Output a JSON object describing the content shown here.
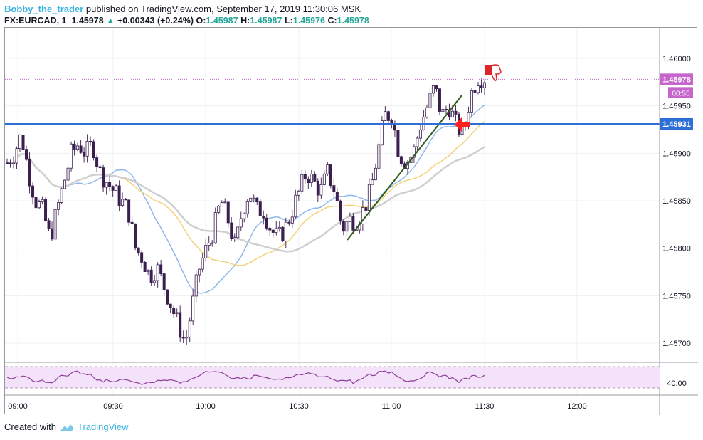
{
  "header": {
    "author": "Bobby_the_trader",
    "published": "published on TradingView.com, September 17, 2019 11:30:06 MSK",
    "symbol": "FX:EURCAD, 1",
    "last": "1.45978",
    "change_arrow": "▲",
    "change": "+0.00343 (+0.24%)",
    "o_label": "O:",
    "o": "1.45987",
    "h_label": "H:",
    "h": "1.45987",
    "l_label": "L:",
    "l": "1.45976",
    "c_label": "C:",
    "c": "1.45978"
  },
  "price_axis": {
    "ticks": [
      "1.46000",
      "1.45950",
      "1.45900",
      "1.45850",
      "1.45800",
      "1.45750",
      "1.45700"
    ],
    "tick_values": [
      1.46,
      1.4595,
      1.459,
      1.4585,
      1.458,
      1.4575,
      1.457
    ],
    "current_price_label": "1.45978",
    "current_price": 1.45978,
    "countdown": "00:55",
    "level_label": "1.45931",
    "level": 1.45931,
    "current_color": "#c666cc",
    "level_color": "#2d6fd6"
  },
  "rsi": {
    "level_label": "40.00"
  },
  "time_axis": {
    "ticks": [
      "09:00",
      "09:30",
      "10:00",
      "10:30",
      "11:00",
      "11:30",
      "12:00"
    ]
  },
  "footer": {
    "created_with": "Created with",
    "brand": "TradingView",
    "logo_icon": "tradingview-cloud-icon"
  },
  "annotations": {
    "arrow_icon": "red-left-arrow-icon",
    "thumb_icon": "thumbs-down-icon",
    "trendline_color": "#2e5a1c"
  },
  "chart_data": {
    "type": "candlestick",
    "interval": "1",
    "x_range": [
      "08:58",
      "12:28"
    ],
    "y_range": [
      1.45685,
      1.46032
    ],
    "candles_close_approx": [
      1.4589,
      1.459,
      1.4592,
      1.4588,
      1.4585,
      1.4584,
      1.4581,
      1.4584,
      1.4587,
      1.459,
      1.4591,
      1.459,
      1.4591,
      1.4588,
      1.4587,
      1.4586,
      1.4585,
      1.4584,
      1.458,
      1.4579,
      1.4577,
      1.4578,
      1.4576,
      1.4574,
      1.4572,
      1.457,
      1.4574,
      1.4578,
      1.458,
      1.4582,
      1.4585,
      1.4583,
      1.458,
      1.4584,
      1.4586,
      1.4584,
      1.4584,
      1.4582,
      1.4581,
      1.4582,
      1.4584,
      1.4586,
      1.4588,
      1.4587,
      1.4586,
      1.4588,
      1.4586,
      1.4582,
      1.4583,
      1.4583,
      1.4584,
      1.4586,
      1.459,
      1.4594,
      1.4594,
      1.459,
      1.4589,
      1.459,
      1.4593,
      1.4595,
      1.4597,
      1.4594,
      1.4595,
      1.4593,
      1.4592,
      1.4596,
      1.4598,
      1.4598
    ]
  }
}
